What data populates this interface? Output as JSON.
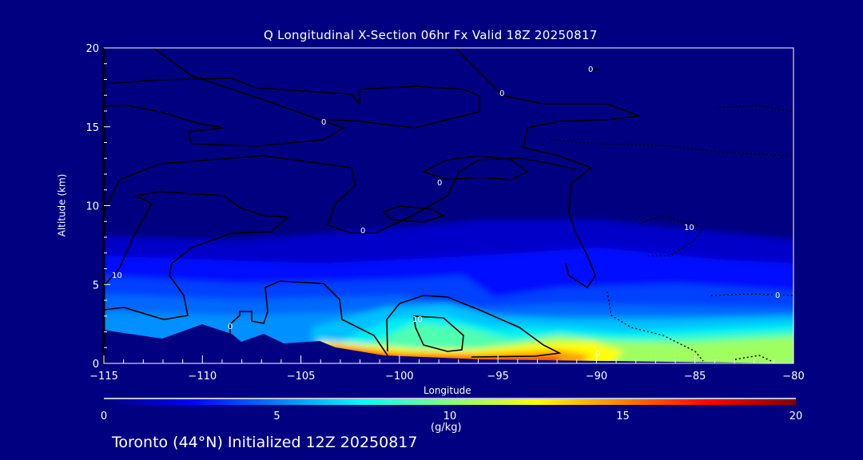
{
  "chart_data": {
    "type": "heatmap",
    "title": "Q Longitudinal X-Section 06hr  Fx Valid 18Z 20250817",
    "xlabel": "Longitude",
    "ylabel": "Altitude (km)",
    "xlim": [
      -115,
      -80
    ],
    "ylim": [
      0,
      20
    ],
    "xticks": [
      -115,
      -110,
      -105,
      -100,
      -95,
      -90,
      -85,
      -80
    ],
    "xtick_labels": [
      "−115",
      "−110",
      "−105",
      "−100",
      "−95",
      "−90",
      "−85",
      "−80"
    ],
    "yticks": [
      0,
      5,
      10,
      15,
      20
    ],
    "ytick_labels": [
      "0",
      "5",
      "10",
      "15",
      "20"
    ],
    "colorbar": {
      "label": "(g/kg)",
      "range": [
        0,
        20
      ],
      "ticks": [
        0,
        5,
        10,
        15,
        20
      ],
      "tick_labels": [
        "0",
        "5",
        "10",
        "15",
        "20"
      ],
      "colormap": [
        "#000080",
        "#0000ff",
        "#0080ff",
        "#00ffff",
        "#80ff80",
        "#ffff00",
        "#ff8000",
        "#ff0000",
        "#800000"
      ]
    },
    "fill_levels": [
      {
        "q": 1.5,
        "color": "#0000c8"
      },
      {
        "q": 2.5,
        "color": "#0010ff"
      },
      {
        "q": 3.5,
        "color": "#0040ff"
      },
      {
        "q": 4.5,
        "color": "#0068ff"
      },
      {
        "q": 5.5,
        "color": "#0090ff"
      },
      {
        "q": 6.5,
        "color": "#00c0ff"
      },
      {
        "q": 8,
        "color": "#00f0f0"
      },
      {
        "q": 9.5,
        "color": "#50ffb0"
      },
      {
        "q": 11,
        "color": "#a0ff60"
      },
      {
        "q": 13,
        "color": "#ffff00"
      },
      {
        "q": 15,
        "color": "#ffa000"
      },
      {
        "q": 17,
        "color": "#ff2000"
      }
    ],
    "contour_labels": [
      "0",
      "0",
      "0",
      "0",
      "10",
      "0",
      "10",
      "0",
      "0",
      "10",
      "0"
    ],
    "footer": "Toronto (44°N) Initialized 12Z 20250817"
  }
}
